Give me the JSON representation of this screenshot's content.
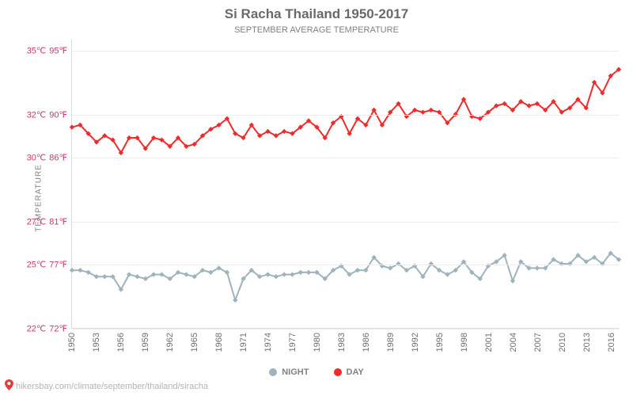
{
  "title": "Si Racha Thailand 1950-2017",
  "subtitle": "SEPTEMBER AVERAGE TEMPERATURE",
  "y_axis_label": "TEMPERATURE",
  "footer": {
    "url": "hikersbay.com/climate/september/thailand/siracha"
  },
  "legend": [
    {
      "key": "night",
      "label": "NIGHT",
      "color": "#9eb3bb"
    },
    {
      "key": "day",
      "label": "DAY",
      "color": "#ef2b2b"
    }
  ],
  "axes": {
    "ymin": 22,
    "ymax": 35.5,
    "y_ticks": [
      {
        "c": "22℃",
        "f": "72℉",
        "val": 22
      },
      {
        "c": "25℃",
        "f": "77℉",
        "val": 25
      },
      {
        "c": "27℃",
        "f": "81℉",
        "val": 27
      },
      {
        "c": "30℃",
        "f": "86℉",
        "val": 30
      },
      {
        "c": "32℃",
        "f": "90℉",
        "val": 32
      },
      {
        "c": "35℃",
        "f": "95℉",
        "val": 35
      }
    ],
    "x_ticks": [
      1950,
      1953,
      1956,
      1959,
      1962,
      1965,
      1968,
      1971,
      1974,
      1977,
      1980,
      1983,
      1986,
      1989,
      1992,
      1995,
      1998,
      2001,
      2004,
      2007,
      2010,
      2013,
      2016
    ]
  },
  "series": {
    "years": [
      1950,
      1951,
      1952,
      1953,
      1954,
      1955,
      1956,
      1957,
      1958,
      1959,
      1960,
      1961,
      1962,
      1963,
      1964,
      1965,
      1966,
      1967,
      1968,
      1969,
      1970,
      1971,
      1972,
      1973,
      1974,
      1975,
      1976,
      1977,
      1978,
      1979,
      1980,
      1981,
      1982,
      1983,
      1984,
      1985,
      1986,
      1987,
      1988,
      1989,
      1990,
      1991,
      1992,
      1993,
      1994,
      1995,
      1996,
      1997,
      1998,
      1999,
      2000,
      2001,
      2002,
      2003,
      2004,
      2005,
      2006,
      2007,
      2008,
      2009,
      2010,
      2011,
      2012,
      2013,
      2014,
      2015,
      2016,
      2017
    ],
    "day": [
      31.4,
      31.5,
      31.1,
      30.7,
      31.0,
      30.8,
      30.2,
      30.9,
      30.9,
      30.4,
      30.9,
      30.8,
      30.5,
      30.9,
      30.5,
      30.6,
      31.0,
      31.3,
      31.5,
      31.8,
      31.1,
      30.9,
      31.5,
      31.0,
      31.2,
      31.0,
      31.2,
      31.1,
      31.4,
      31.7,
      31.4,
      30.9,
      31.6,
      31.9,
      31.1,
      31.8,
      31.5,
      32.2,
      31.5,
      32.1,
      32.5,
      31.9,
      32.2,
      32.1,
      32.2,
      32.1,
      31.6,
      32.0,
      32.7,
      31.9,
      31.8,
      32.1,
      32.4,
      32.5,
      32.2,
      32.6,
      32.4,
      32.5,
      32.2,
      32.6,
      32.1,
      32.3,
      32.7,
      32.3,
      33.5,
      33.0,
      33.8,
      34.1
    ],
    "night": [
      24.7,
      24.7,
      24.6,
      24.4,
      24.4,
      24.4,
      23.8,
      24.5,
      24.4,
      24.3,
      24.5,
      24.5,
      24.3,
      24.6,
      24.5,
      24.4,
      24.7,
      24.6,
      24.8,
      24.6,
      23.3,
      24.3,
      24.7,
      24.4,
      24.5,
      24.4,
      24.5,
      24.5,
      24.6,
      24.6,
      24.6,
      24.3,
      24.7,
      24.9,
      24.5,
      24.7,
      24.7,
      25.3,
      24.9,
      24.8,
      25.0,
      24.7,
      24.9,
      24.4,
      25.0,
      24.7,
      24.5,
      24.7,
      25.1,
      24.6,
      24.3,
      24.9,
      25.1,
      25.4,
      24.2,
      25.1,
      24.8,
      24.8,
      24.8,
      25.2,
      25.0,
      25.0,
      25.4,
      25.1,
      25.3,
      25.0,
      25.5,
      25.2
    ]
  },
  "style": {
    "title_fontsize": 17,
    "subtitle_fontsize": 11,
    "y_axis_label_fontsize": 10,
    "tick_fontsize": 11,
    "x_tick_fontsize": 11,
    "legend_fontsize": 11,
    "footer_fontsize": 11,
    "line_width": 2,
    "marker_radius": 3.2,
    "marker_shape": "diamond",
    "grid_color": "#ececec",
    "axis_color": "#dcdcdc",
    "tick_text_color": "#c9376e",
    "background": "#ffffff"
  }
}
